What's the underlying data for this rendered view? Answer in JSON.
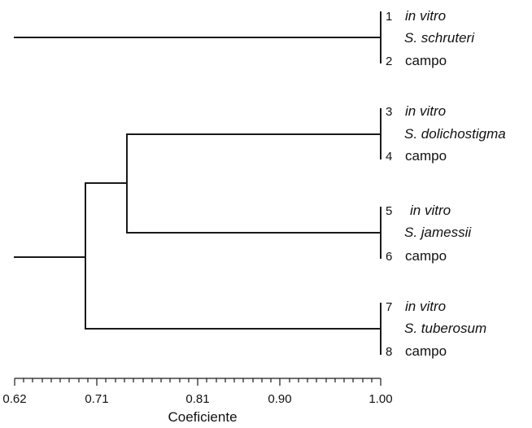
{
  "axis": {
    "title": "Coeficiente",
    "ticks": [
      "0.62",
      "0.71",
      "0.81",
      "0.90",
      "1.00"
    ]
  },
  "groups": [
    {
      "species": "S. schruteri",
      "leaves": [
        {
          "num": "1",
          "label": "in vitro"
        },
        {
          "num": "2",
          "label": "campo"
        }
      ]
    },
    {
      "species": "S. dolichostigma",
      "leaves": [
        {
          "num": "3",
          "label": "in vitro"
        },
        {
          "num": "4",
          "label": "campo"
        }
      ]
    },
    {
      "species": "S. jamessii",
      "leaves": [
        {
          "num": "5",
          "label": "in vitro"
        },
        {
          "num": "6",
          "label": "campo"
        }
      ]
    },
    {
      "species": "S. tuberosum",
      "leaves": [
        {
          "num": "7",
          "label": "in vitro"
        },
        {
          "num": "8",
          "label": "campo"
        }
      ]
    }
  ]
}
